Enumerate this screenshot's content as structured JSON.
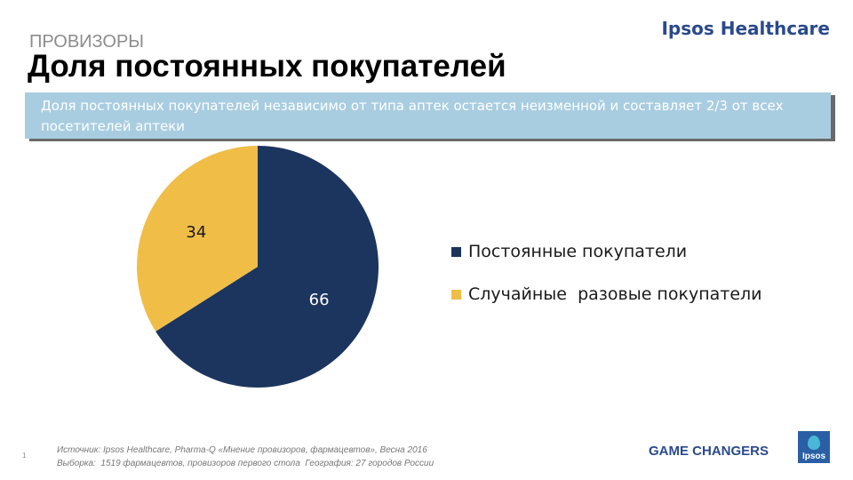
{
  "header": {
    "brand": "Ipsos Healthcare",
    "section": "ПРОВИЗОРЫ",
    "title": "Доля постоянных покупателей"
  },
  "callout": {
    "text": "Доля постоянных покупателей независимо от типа аптек остается неизменной и составляет 2/3 от всех посетителей аптеки"
  },
  "chart_data": {
    "type": "pie",
    "categories": [
      "Постоянные покупатели",
      "Случайные  разовые покупатели"
    ],
    "values": [
      66,
      34
    ],
    "colors": [
      "#1c355e",
      "#f0bd47"
    ],
    "data_labels": [
      "66",
      "34"
    ],
    "label_colors": [
      "#ffffff",
      "#1a1a1a"
    ],
    "legend_position": "right"
  },
  "footer": {
    "slide_number": "1",
    "source_line1": "Источник: Ipsos Healthcare, Pharma-Q «Мнение провизоров, фармацевтов», Весна 2016",
    "source_line2": "Выборка:  1519 фармацевтов, провизоров первого стола  География: 27 городов России",
    "tagline": "GAME CHANGERS",
    "logo_text": "Ipsos"
  }
}
